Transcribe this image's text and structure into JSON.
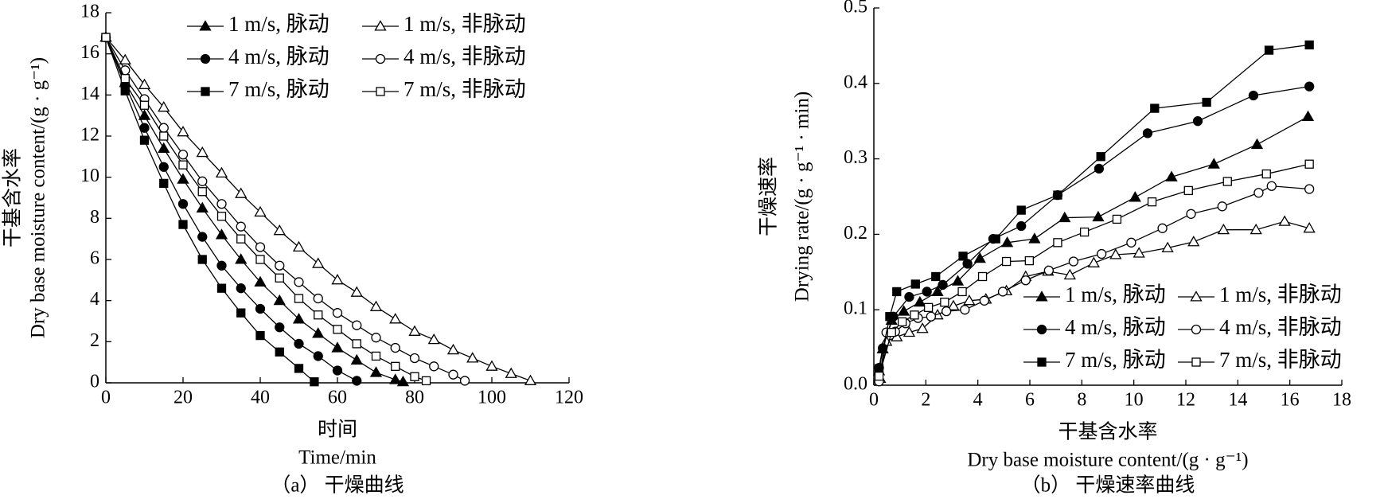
{
  "chart_data": [
    {
      "type": "scatter",
      "caption": "（a） 干燥曲线",
      "xlabel": "时间",
      "xlabel_en": "Time/min",
      "ylabel": "干基含水率",
      "ylabel_en": "Dry base moisture content/(g · g⁻¹)",
      "xlim": [
        0,
        120
      ],
      "xticks": [
        0,
        20,
        40,
        60,
        80,
        100,
        120
      ],
      "ylim": [
        0,
        18
      ],
      "yticks": [
        0,
        2,
        4,
        6,
        8,
        10,
        12,
        14,
        16,
        18
      ],
      "legend": "upper right",
      "color": "#000000",
      "series": [
        {
          "name": "1 m/s, 脉动",
          "marker": "triangle",
          "filled": true,
          "x": [
            0,
            5,
            10,
            15,
            20,
            25,
            30,
            35,
            40,
            45,
            50,
            55,
            60,
            65,
            70,
            75,
            77
          ],
          "values": [
            16.8,
            14.6,
            13.0,
            11.4,
            9.9,
            8.5,
            7.2,
            6.0,
            4.9,
            4.0,
            3.1,
            2.4,
            1.7,
            1.1,
            0.5,
            0.15,
            0.05
          ]
        },
        {
          "name": "1 m/s, 非脉动",
          "marker": "triangle",
          "filled": false,
          "x": [
            0,
            5,
            10,
            15,
            20,
            25,
            30,
            35,
            40,
            45,
            50,
            55,
            60,
            65,
            70,
            75,
            80,
            85,
            90,
            95,
            100,
            105,
            110
          ],
          "values": [
            16.8,
            15.7,
            14.5,
            13.4,
            12.2,
            11.2,
            10.2,
            9.2,
            8.3,
            7.4,
            6.6,
            5.8,
            5.0,
            4.4,
            3.7,
            3.1,
            2.5,
            2.1,
            1.6,
            1.2,
            0.8,
            0.45,
            0.1
          ]
        },
        {
          "name": "4 m/s, 脉动",
          "marker": "circle",
          "filled": true,
          "x": [
            0,
            5,
            10,
            15,
            20,
            25,
            30,
            35,
            40,
            45,
            50,
            55,
            60,
            65
          ],
          "values": [
            16.8,
            14.5,
            12.4,
            10.5,
            8.7,
            7.1,
            5.7,
            4.6,
            3.6,
            2.7,
            1.9,
            1.3,
            0.6,
            0.1
          ]
        },
        {
          "name": "4 m/s, 非脉动",
          "marker": "circle",
          "filled": false,
          "x": [
            0,
            5,
            10,
            15,
            20,
            25,
            30,
            35,
            40,
            45,
            50,
            55,
            60,
            65,
            70,
            75,
            80,
            85,
            90,
            93
          ],
          "values": [
            16.8,
            15.2,
            13.8,
            12.4,
            11.1,
            9.8,
            8.7,
            7.6,
            6.6,
            5.7,
            4.9,
            4.1,
            3.4,
            2.8,
            2.2,
            1.7,
            1.2,
            0.8,
            0.4,
            0.1
          ]
        },
        {
          "name": "7 m/s, 脉动",
          "marker": "square",
          "filled": true,
          "x": [
            0,
            5,
            10,
            15,
            20,
            25,
            30,
            35,
            40,
            45,
            50,
            54
          ],
          "values": [
            16.8,
            14.2,
            11.8,
            9.7,
            7.7,
            6.0,
            4.6,
            3.4,
            2.3,
            1.5,
            0.7,
            0.05
          ]
        },
        {
          "name": "7 m/s, 非脉动",
          "marker": "square",
          "filled": false,
          "x": [
            0,
            5,
            10,
            15,
            20,
            25,
            30,
            35,
            40,
            45,
            50,
            55,
            60,
            65,
            70,
            75,
            80,
            83
          ],
          "values": [
            16.8,
            14.8,
            13.5,
            12.0,
            10.6,
            9.3,
            8.1,
            7.0,
            6.0,
            5.1,
            4.1,
            3.3,
            2.6,
            1.9,
            1.3,
            0.8,
            0.3,
            0.1
          ]
        }
      ]
    },
    {
      "type": "scatter",
      "caption": "（b） 干燥速率曲线",
      "xlabel": "干基含水率",
      "xlabel_en": "Dry base moisture content/(g · g⁻¹)",
      "ylabel": "干燥速率",
      "ylabel_en": "Drying rate/(g · g⁻¹ · min)",
      "xlim": [
        0,
        18
      ],
      "xticks": [
        0,
        2,
        4,
        6,
        8,
        10,
        12,
        14,
        16,
        18
      ],
      "ylim": [
        0,
        0.5
      ],
      "yticks": [
        {
          "value": 0,
          "label": "0.0"
        },
        0.1,
        0.2,
        0.3,
        0.4,
        0.5
      ],
      "legend": "lower right",
      "color": "#000000",
      "series": [
        {
          "name": "1 m/s, 脉动",
          "marker": "triangle",
          "filled": true,
          "x": [
            0.2,
            0.34,
            0.68,
            1.15,
            1.77,
            2.45,
            3.23,
            4.08,
            5.13,
            6.18,
            7.34,
            8.63,
            10.05,
            11.45,
            13.08,
            14.74,
            16.7
          ],
          "values": [
            0.019,
            0.048,
            0.086,
            0.098,
            0.11,
            0.124,
            0.138,
            0.168,
            0.189,
            0.194,
            0.222,
            0.223,
            0.249,
            0.276,
            0.293,
            0.319,
            0.356
          ]
        },
        {
          "name": "1 m/s, 非脉动",
          "marker": "triangle",
          "filled": false,
          "x": [
            0.24,
            0.48,
            0.88,
            1.36,
            1.87,
            2.45,
            3.06,
            3.67,
            4.31,
            5.1,
            5.84,
            6.7,
            7.54,
            8.46,
            9.3,
            10.2,
            11.3,
            12.3,
            13.45,
            14.7,
            15.8,
            16.75
          ],
          "values": [
            0.009,
            0.058,
            0.064,
            0.07,
            0.075,
            0.093,
            0.105,
            0.112,
            0.114,
            0.125,
            0.144,
            0.151,
            0.146,
            0.162,
            0.173,
            0.175,
            0.182,
            0.19,
            0.206,
            0.206,
            0.217,
            0.208
          ]
        },
        {
          "name": "4 m/s, 脉动",
          "marker": "circle",
          "filled": true,
          "x": [
            0.2,
            0.34,
            0.75,
            1.36,
            2.04,
            2.65,
            3.6,
            4.59,
            5.67,
            7.07,
            8.66,
            10.53,
            12.46,
            14.6,
            16.75
          ],
          "values": [
            0.023,
            0.049,
            0.091,
            0.117,
            0.124,
            0.133,
            0.161,
            0.194,
            0.211,
            0.252,
            0.287,
            0.334,
            0.35,
            0.384,
            0.396
          ]
        },
        {
          "name": "4 m/s, 非脉动",
          "marker": "circle",
          "filled": false,
          "x": [
            0.2,
            0.48,
            0.82,
            1.22,
            1.7,
            2.2,
            2.79,
            3.5,
            4.25,
            4.96,
            5.84,
            6.73,
            7.68,
            8.76,
            9.9,
            11.1,
            12.2,
            13.4,
            14.8,
            15.3,
            16.75
          ],
          "values": [
            0.005,
            0.07,
            0.071,
            0.082,
            0.089,
            0.091,
            0.098,
            0.1,
            0.112,
            0.124,
            0.139,
            0.152,
            0.164,
            0.174,
            0.189,
            0.208,
            0.227,
            0.237,
            0.255,
            0.264,
            0.26
          ]
        },
        {
          "name": "7 m/s, 脉动",
          "marker": "square",
          "filled": true,
          "x": [
            0.2,
            0.61,
            0.88,
            1.6,
            2.38,
            3.43,
            4.69,
            5.67,
            7.07,
            8.73,
            10.8,
            12.8,
            15.2,
            16.75
          ],
          "values": [
            0.022,
            0.091,
            0.124,
            0.134,
            0.144,
            0.171,
            0.194,
            0.232,
            0.252,
            0.303,
            0.367,
            0.375,
            0.444,
            0.451
          ]
        },
        {
          "name": "7 m/s, 非脉动",
          "marker": "square",
          "filled": false,
          "x": [
            0.2,
            0.68,
            1.09,
            1.56,
            2.1,
            2.72,
            3.4,
            4.18,
            5.1,
            5.98,
            7.07,
            8.1,
            9.35,
            10.7,
            12.1,
            13.6,
            15.1,
            16.75
          ],
          "values": [
            0.012,
            0.07,
            0.084,
            0.093,
            0.103,
            0.11,
            0.124,
            0.144,
            0.164,
            0.165,
            0.189,
            0.203,
            0.22,
            0.243,
            0.258,
            0.27,
            0.28,
            0.293
          ]
        }
      ]
    }
  ]
}
